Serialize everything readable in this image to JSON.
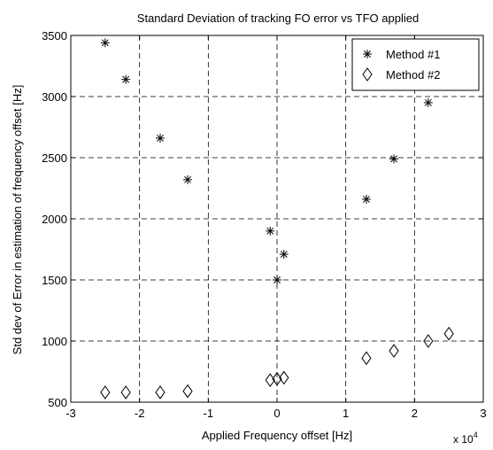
{
  "chart_data": {
    "type": "scatter",
    "title": "Standard Deviation of tracking FO error vs TFO applied",
    "xlabel": "Applied Frequency offset [Hz]",
    "ylabel": "Std dev of Error in estimation of frequency offset [Hz]",
    "x_multiplier_label": "x 10",
    "x_multiplier_exp": "4",
    "xlim": [
      -3,
      3
    ],
    "ylim": [
      500,
      3500
    ],
    "xticks": [
      -3,
      -2,
      -1,
      0,
      1,
      2,
      3
    ],
    "xtick_labels": [
      "-3",
      "-2",
      "-1",
      "0",
      "1",
      "2",
      "3"
    ],
    "yticks": [
      500,
      1000,
      1500,
      2000,
      2500,
      3000,
      3500
    ],
    "ytick_labels": [
      "500",
      "1000",
      "1500",
      "2000",
      "2500",
      "3000",
      "3500"
    ],
    "grid": true,
    "legend_position": "top-right",
    "series": [
      {
        "name": "Method #1",
        "marker": "asterisk",
        "x": [
          -2.5,
          -2.2,
          -1.7,
          -1.3,
          -0.1,
          0.0,
          0.1,
          1.3,
          1.7,
          2.2
        ],
        "y": [
          3440,
          3140,
          2660,
          2320,
          1900,
          1500,
          1710,
          2160,
          2490,
          2950
        ]
      },
      {
        "name": "Method #2",
        "marker": "diamond",
        "x": [
          -2.5,
          -2.2,
          -1.7,
          -1.3,
          -0.1,
          0.0,
          0.1,
          1.3,
          1.7,
          2.2,
          2.5
        ],
        "y": [
          580,
          580,
          580,
          590,
          680,
          690,
          700,
          860,
          920,
          1000,
          1060
        ]
      }
    ]
  }
}
